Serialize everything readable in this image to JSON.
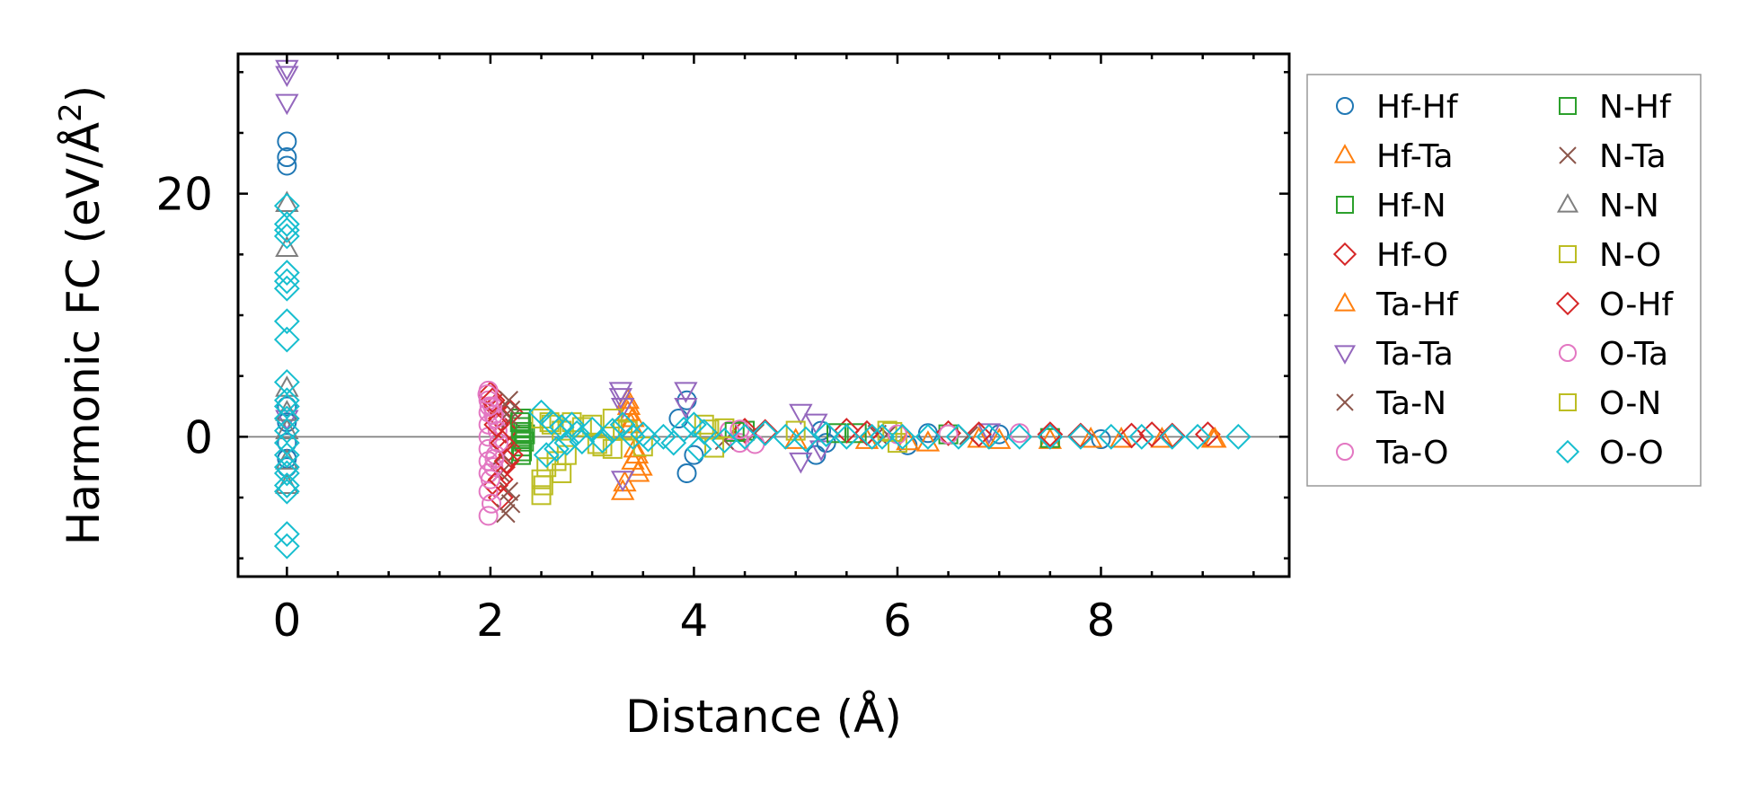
{
  "chart_data": {
    "type": "scatter",
    "title": "",
    "xlabel": "Distance (Å)",
    "ylabel_main": "Harmonic FC (eV/Å",
    "ylabel_sup": "2",
    "ylabel_close": ")",
    "xlim": [
      -0.48,
      9.85
    ],
    "ylim": [
      -11.5,
      31.5
    ],
    "xticks": [
      0,
      2,
      4,
      6,
      8
    ],
    "xtick_labels": [
      "0",
      "2",
      "4",
      "6",
      "8"
    ],
    "yticks": [
      0,
      20
    ],
    "ytick_labels": [
      "0",
      "20"
    ],
    "x_minor_step": 0.5,
    "y_minor_step": 5,
    "reference_line_y": 0,
    "grid": false,
    "legend_position": "outside-right",
    "legend_columns": 2,
    "series": [
      {
        "name": "Hf-Hf",
        "marker": "circle",
        "color": "#1f77b4",
        "x": [
          0,
          0,
          0,
          0,
          0,
          0,
          0,
          0,
          3.93,
          3.93,
          3.85,
          4.0,
          5.2,
          5.25,
          5.3,
          6.1,
          6.3,
          7.0,
          8.0
        ],
        "y": [
          24.3,
          23.0,
          22.3,
          2.5,
          1.2,
          -0.5,
          -1.8,
          -2.5,
          3.0,
          -3.0,
          1.5,
          -1.5,
          -1.5,
          0.5,
          -0.5,
          -0.7,
          0.3,
          0.2,
          -0.2
        ]
      },
      {
        "name": "Hf-Ta",
        "marker": "triangle-up",
        "color": "#ff7f0e",
        "x": [
          3.35,
          3.35,
          3.4,
          3.45,
          3.3,
          3.38,
          3.42,
          5.7,
          6.3,
          6.8,
          7.5,
          7.9,
          8.6,
          9.1
        ],
        "y": [
          3.0,
          2.0,
          -2.0,
          -3.0,
          -4.5,
          1.0,
          -1.0,
          -0.3,
          -0.5,
          -0.2,
          -0.3,
          -0.2,
          -0.2,
          -0.2
        ]
      },
      {
        "name": "Hf-N",
        "marker": "square",
        "color": "#2ca02c",
        "x": [
          2.3,
          2.3,
          2.3,
          2.3,
          2.3,
          2.32,
          2.33,
          4.5,
          5.6,
          6.5,
          7.5
        ],
        "y": [
          1.5,
          0.8,
          0.0,
          -0.8,
          -1.5,
          0.4,
          -0.4,
          0.5,
          0.3,
          0.2,
          -0.1
        ]
      },
      {
        "name": "Hf-O",
        "marker": "diamond",
        "color": "#d62728",
        "x": [
          2.0,
          2.05,
          2.1,
          2.15,
          2.18,
          2.12,
          2.05,
          2.2,
          2.2,
          2.1,
          4.5,
          5.5,
          6.5,
          7.5,
          8.5,
          9.05,
          8.7
        ],
        "y": [
          3.5,
          2.5,
          1.5,
          0.5,
          -1.0,
          -2.5,
          -4.0,
          2.0,
          -1.5,
          -5.0,
          0.5,
          0.5,
          0.3,
          0.2,
          0.2,
          0.2,
          0.1
        ]
      },
      {
        "name": "Ta-Hf",
        "marker": "triangle-up",
        "color": "#ff7f0e",
        "x": [
          3.36,
          3.4,
          3.44,
          3.48,
          3.32,
          5.0,
          6.1,
          7.0,
          8.2,
          9.12
        ],
        "y": [
          2.5,
          1.5,
          -1.5,
          -2.5,
          -3.8,
          -0.3,
          -0.4,
          -0.3,
          -0.2,
          -0.2
        ]
      },
      {
        "name": "Ta-Ta",
        "marker": "triangle-down",
        "color": "#9467bd",
        "x": [
          0,
          0,
          0,
          0,
          3.28,
          3.28,
          3.3,
          3.3,
          3.92,
          3.92,
          5.05,
          5.05,
          5.2,
          5.25,
          6.9
        ],
        "y": [
          30.3,
          29.8,
          27.5,
          1.5,
          3.8,
          3.3,
          -3.5,
          2.5,
          3.8,
          2.5,
          2.0,
          -2.0,
          1.2,
          -1.0,
          0.4
        ]
      },
      {
        "name": "Ta-N",
        "marker": "cross",
        "color": "#8c564b",
        "x": [
          2.15,
          2.2,
          2.2,
          2.1,
          2.18,
          4.6,
          5.8,
          6.7
        ],
        "y": [
          -6.3,
          -5.5,
          1.5,
          -3.0,
          3.0,
          0.3,
          0.2,
          0.1
        ]
      },
      {
        "name": "Ta-O",
        "marker": "circle",
        "color": "#e377c2",
        "x": [
          1.98,
          1.98,
          1.98,
          1.98,
          1.98,
          1.98,
          1.98,
          1.98,
          1.98,
          1.98,
          2.02,
          2.03,
          2.05,
          2.05,
          2.07,
          2.08,
          4.35,
          4.45,
          6.5,
          7.2
        ],
        "y": [
          3.8,
          3.0,
          2.0,
          1.0,
          0.0,
          -1.0,
          -2.0,
          -3.0,
          -4.5,
          -6.5,
          2.5,
          -2.5,
          1.5,
          -1.5,
          0.5,
          -0.5,
          0.5,
          -0.5,
          0.2,
          0.3
        ]
      },
      {
        "name": "N-Hf",
        "marker": "square",
        "color": "#2ca02c",
        "x": [
          2.29,
          2.31,
          2.34,
          2.3,
          4.4,
          5.4
        ],
        "y": [
          1.2,
          -1.2,
          0.2,
          -0.2,
          0.4,
          0.3
        ]
      },
      {
        "name": "N-Ta",
        "marker": "cross",
        "color": "#8c564b",
        "x": [
          2.18,
          2.2,
          2.12,
          4.3,
          5.9
        ],
        "y": [
          -4.5,
          2.2,
          -1.5,
          -0.3,
          0.2
        ]
      },
      {
        "name": "N-N",
        "marker": "triangle-up",
        "color": "#7f7f7f",
        "x": [
          0,
          0,
          0,
          0,
          0,
          0,
          0
        ],
        "y": [
          19.2,
          15.5,
          4.0,
          2.0,
          0.5,
          -2.0,
          -4.0
        ]
      },
      {
        "name": "N-O",
        "marker": "square",
        "color": "#bcbd22",
        "x": [
          2.5,
          2.5,
          2.5,
          2.55,
          2.6,
          2.7,
          2.7,
          2.75,
          2.8,
          3.0,
          3.1,
          3.2,
          3.2,
          3.3,
          3.5,
          4.1,
          4.2,
          4.3,
          5.0,
          5.9,
          6.0
        ],
        "y": [
          -4.8,
          -3.5,
          1.5,
          -2.5,
          1.0,
          -3.0,
          0.5,
          -1.5,
          1.2,
          1.0,
          -0.8,
          1.5,
          -1.0,
          0.6,
          -0.8,
          1.0,
          -0.9,
          0.7,
          0.5,
          0.5,
          -0.5
        ]
      },
      {
        "name": "O-Hf",
        "marker": "diamond",
        "color": "#d62728",
        "x": [
          2.02,
          2.06,
          2.12,
          2.16,
          2.1,
          4.7,
          5.7,
          6.8,
          7.8,
          8.3
        ],
        "y": [
          3.0,
          1.0,
          -0.5,
          -2.0,
          -3.5,
          0.4,
          0.3,
          0.2,
          0.1,
          0.1
        ]
      },
      {
        "name": "O-Ta",
        "marker": "circle",
        "color": "#e377c2",
        "x": [
          1.97,
          1.99,
          2.0,
          2.01,
          2.03,
          2.04,
          4.45,
          4.6,
          6.0
        ],
        "y": [
          3.5,
          2.5,
          -3.5,
          -5.5,
          1.8,
          -1.8,
          0.6,
          -0.6,
          0.2
        ]
      },
      {
        "name": "O-N",
        "marker": "square",
        "color": "#bcbd22",
        "x": [
          2.52,
          2.58,
          2.65,
          2.9,
          3.05,
          3.35,
          4.15,
          5.95
        ],
        "y": [
          -4.0,
          1.2,
          -2.0,
          0.8,
          -0.6,
          0.5,
          0.6,
          0.4
        ]
      },
      {
        "name": "O-O",
        "marker": "diamond",
        "color": "#17becf",
        "x": [
          0,
          0,
          0,
          0,
          0,
          0,
          0,
          0,
          0,
          0,
          0,
          0,
          0,
          0,
          0,
          0,
          0,
          0,
          0,
          0,
          0,
          0,
          2.5,
          2.55,
          2.6,
          2.65,
          2.7,
          2.75,
          2.8,
          2.85,
          2.9,
          3.0,
          3.1,
          3.2,
          3.3,
          3.4,
          3.5,
          3.55,
          3.7,
          3.8,
          3.9,
          4.0,
          4.05,
          4.1,
          4.3,
          4.5,
          4.7,
          4.9,
          5.1,
          5.3,
          5.5,
          5.75,
          5.85,
          6.05,
          6.3,
          6.6,
          6.9,
          7.2,
          7.5,
          7.8,
          8.1,
          8.4,
          8.7,
          8.95,
          9.35
        ],
        "y": [
          19.0,
          17.5,
          17.0,
          16.5,
          13.5,
          12.8,
          12.2,
          9.5,
          8.0,
          4.5,
          3.0,
          2.5,
          1.5,
          0.5,
          -0.5,
          -1.5,
          -2.5,
          -3.0,
          -4.0,
          -4.5,
          -8.0,
          -9.0,
          2.0,
          -1.5,
          1.2,
          -1.0,
          0.8,
          -0.5,
          1.0,
          0.3,
          -0.4,
          0.6,
          -0.3,
          0.5,
          1.0,
          0.0,
          0.2,
          -0.2,
          0.0,
          -0.5,
          0.6,
          1.0,
          -1.0,
          0.4,
          -0.3,
          0.0,
          0.3,
          0.0,
          -0.2,
          0.2,
          0.0,
          0.0,
          0.0,
          0.0,
          0.0,
          0.0,
          0.0,
          0.0,
          0.0,
          0.0,
          0.0,
          0.0,
          0.0,
          0.0,
          0.0
        ]
      }
    ]
  }
}
